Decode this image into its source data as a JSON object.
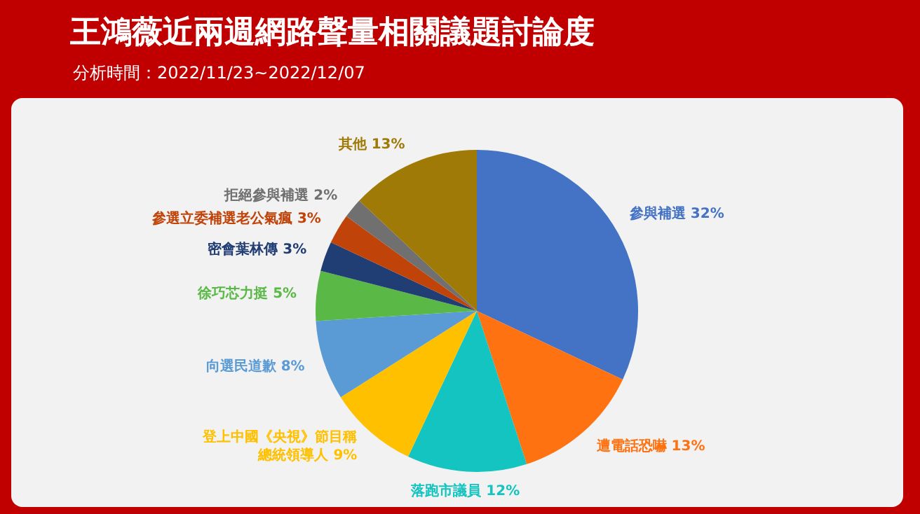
{
  "chart_data": {
    "type": "pie",
    "title": "王鴻薇近兩週網路聲量相關議題討論度",
    "subtitle": "分析時間：2022/11/23~2022/12/07",
    "categories": [
      "參與補選",
      "遭電話恐嚇",
      "落跑市議員",
      "登上中國《央視》節目稱總統領導人",
      "向選民道歉",
      "徐巧芯力挺",
      "密會葉林傳",
      "參選立委補選老公氣瘋",
      "拒絕參與補選",
      "其他"
    ],
    "values": [
      32,
      13,
      12,
      9,
      8,
      5,
      3,
      3,
      2,
      13
    ],
    "value_labels": [
      "32%",
      "13%",
      "12%",
      "9%",
      "8%",
      "5%",
      "3%",
      "3%",
      "2%",
      "13%"
    ],
    "colors": [
      "#4472c4",
      "#ff7211",
      "#13c4c0",
      "#ffc000",
      "#5b9bd5",
      "#5ab946",
      "#203d74",
      "#c0440a",
      "#707070",
      "#a07a06"
    ],
    "legend": false
  }
}
